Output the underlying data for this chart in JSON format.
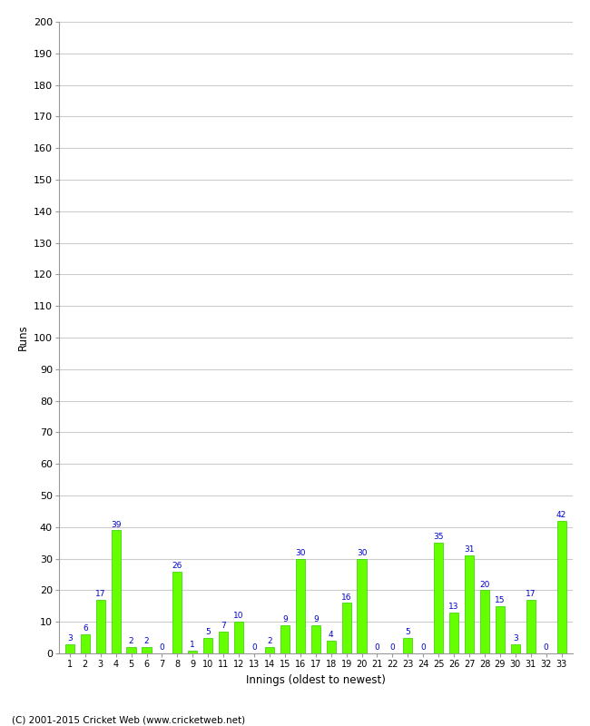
{
  "innings": [
    1,
    2,
    3,
    4,
    5,
    6,
    7,
    8,
    9,
    10,
    11,
    12,
    13,
    14,
    15,
    16,
    17,
    18,
    19,
    20,
    21,
    22,
    23,
    24,
    25,
    26,
    27,
    28,
    29,
    30,
    31,
    32,
    33
  ],
  "runs": [
    3,
    6,
    17,
    39,
    2,
    2,
    0,
    26,
    1,
    5,
    7,
    10,
    0,
    2,
    9,
    30,
    9,
    4,
    16,
    30,
    0,
    0,
    5,
    0,
    35,
    13,
    31,
    20,
    15,
    3,
    17,
    0,
    42
  ],
  "bar_color": "#66ff00",
  "bar_edge_color": "#33cc00",
  "label_color": "#0000cc",
  "ylabel": "Runs",
  "xlabel": "Innings (oldest to newest)",
  "ylim": [
    0,
    200
  ],
  "yticks": [
    0,
    10,
    20,
    30,
    40,
    50,
    60,
    70,
    80,
    90,
    100,
    110,
    120,
    130,
    140,
    150,
    160,
    170,
    180,
    190,
    200
  ],
  "grid_color": "#cccccc",
  "bg_color": "#ffffff",
  "footer": "(C) 2001-2015 Cricket Web (www.cricketweb.net)"
}
